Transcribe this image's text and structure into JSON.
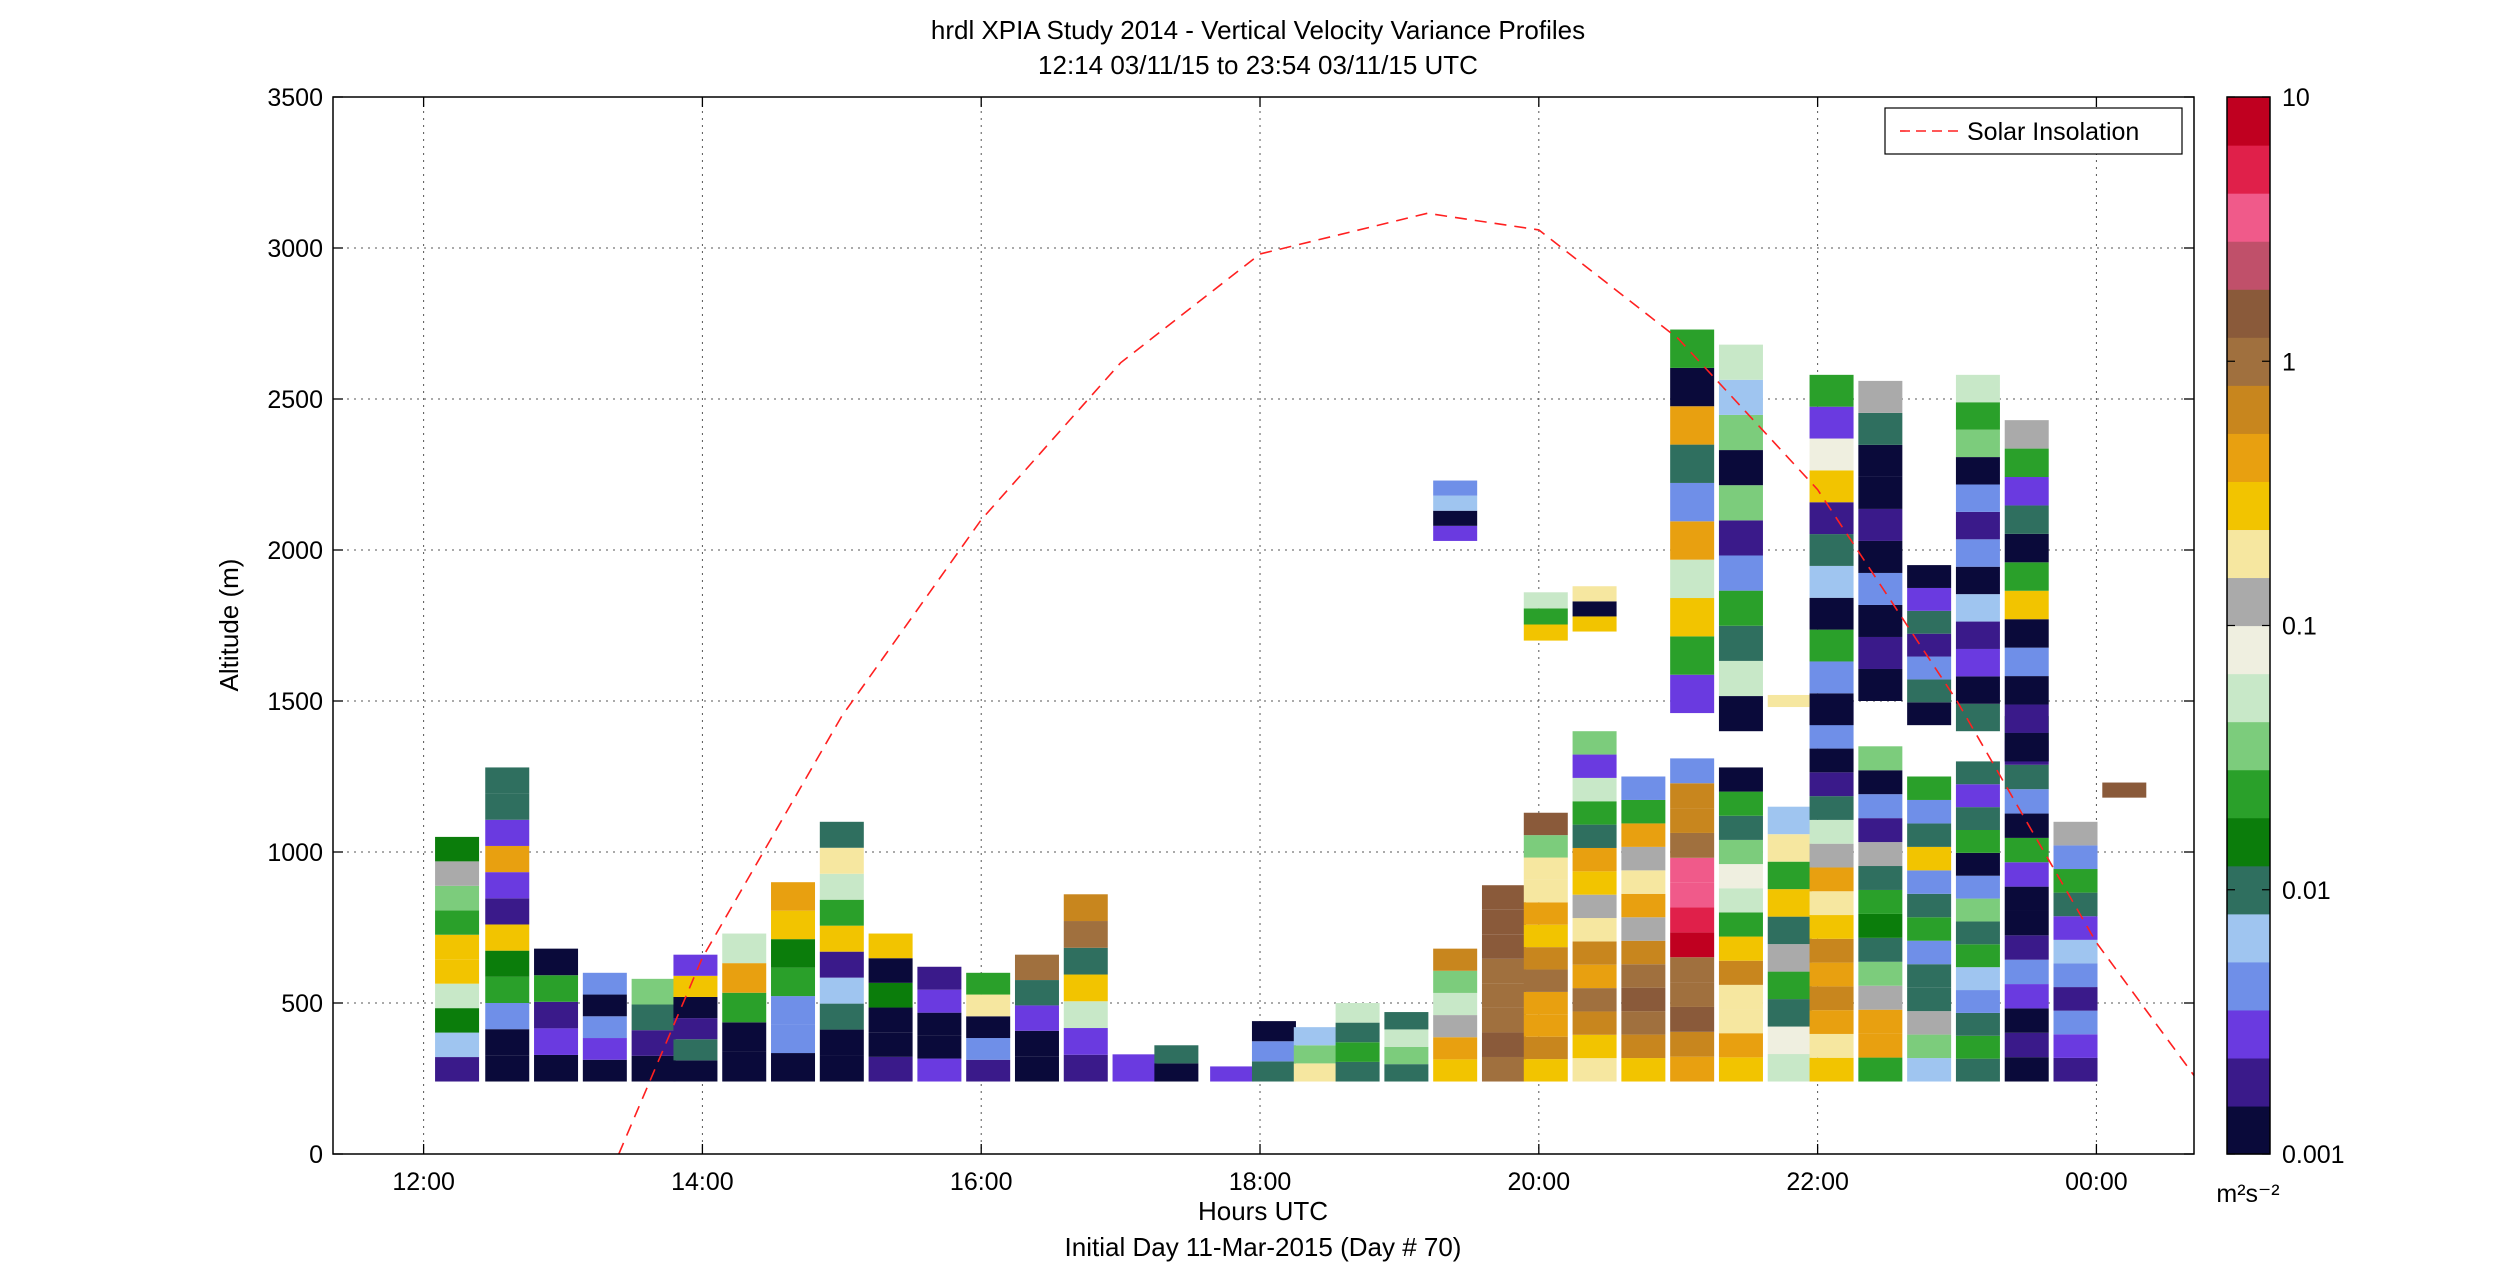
{
  "chart_data": {
    "type": "heatmap",
    "title": "hrdl XPIA Study 2014 - Vertical Velocity Variance Profiles",
    "subtitle": "12:14 03/11/15 to 23:54 03/11/15  UTC",
    "xlabel": "Hours UTC",
    "xlabel2": "Initial Day 11-Mar-2015 (Day # 70)",
    "ylabel": "Altitude (m)",
    "x_ticks": [
      "12:00",
      "14:00",
      "16:00",
      "18:00",
      "20:00",
      "22:00",
      "00:00"
    ],
    "x_tick_hours": [
      12,
      14,
      16,
      18,
      20,
      22,
      24
    ],
    "xlim_hours": [
      11.35,
      24.7
    ],
    "y_ticks": [
      0,
      500,
      1000,
      1500,
      2000,
      2500,
      3000,
      3500
    ],
    "ylim": [
      0,
      3500
    ],
    "grid": true,
    "legend": {
      "entries": [
        "Solar Insolation"
      ],
      "placement": "top-right"
    },
    "colorbar": {
      "scale": "log",
      "range": [
        0.001,
        10
      ],
      "tick_labels": [
        "10",
        "1",
        "0.1",
        "0.01",
        "0.001"
      ],
      "tick_values": [
        10,
        1,
        0.1,
        0.01,
        0.001
      ],
      "unit_label": "m²s⁻²",
      "colors": [
        "#0a0a3a",
        "#3a1a8a",
        "#6a3ae0",
        "#6f8fe8",
        "#9fc5f0",
        "#2f6f5f",
        "#0b7d0b",
        "#2aa02a",
        "#7ccc7c",
        "#c8e8c8",
        "#efefe0",
        "#aaaaaa",
        "#f6e7a0",
        "#f2c400",
        "#e8a010",
        "#c8861e",
        "#a0703e",
        "#8a5a3a",
        "#c0506a",
        "#f05a8a",
        "#e0204a",
        "#c00020"
      ]
    },
    "series": [
      {
        "name": "Solar Insolation",
        "peak_hour": 19.2,
        "peak_altitude": 3115,
        "curve_hours": [
          13.4,
          14,
          15,
          16,
          17,
          18,
          19.2,
          20,
          21,
          22,
          23,
          24,
          24.7
        ],
        "curve_altitudes": [
          0,
          650,
          1450,
          2100,
          2620,
          2980,
          3115,
          3060,
          2700,
          2200,
          1500,
          700,
          260
        ]
      }
    ],
    "profile_blocks": [
      {
        "h": 12.24,
        "z0": 240,
        "z1": 1050,
        "level": [
          0.002,
          0.008,
          0.015,
          0.05,
          0.3,
          0.3,
          0.02,
          0.03,
          0.1,
          0.015
        ]
      },
      {
        "h": 12.6,
        "z0": 240,
        "z1": 1280,
        "level": [
          0.001,
          0.001,
          0.004,
          0.02,
          0.015,
          0.3,
          0.002,
          0.003,
          0.5,
          0.003,
          0.01,
          0.012
        ]
      },
      {
        "h": 12.95,
        "z0": 240,
        "z1": 680,
        "level": [
          0.001,
          0.003,
          0.002,
          0.02,
          0.0012
        ]
      },
      {
        "h": 13.3,
        "z0": 240,
        "z1": 600,
        "level": [
          0.001,
          0.003,
          0.004,
          0.001,
          0.005
        ]
      },
      {
        "h": 13.65,
        "z0": 240,
        "z1": 580,
        "level": [
          0.001,
          0.002,
          0.012,
          0.03
        ]
      },
      {
        "h": 13.95,
        "z0": 240,
        "z1": 660,
        "level": [
          0.001,
          0.01,
          0.002,
          0.0015,
          0.3,
          0.003
        ]
      },
      {
        "h": 14.3,
        "z0": 240,
        "z1": 730,
        "level": [
          0.0015,
          0.001,
          0.02,
          0.4,
          0.05
        ]
      },
      {
        "h": 14.65,
        "z0": 240,
        "z1": 900,
        "level": [
          0.001,
          0.005,
          0.004,
          0.02,
          0.015,
          0.3,
          0.5
        ]
      },
      {
        "h": 15.0,
        "z0": 240,
        "z1": 1100,
        "level": [
          0.001,
          0.0015,
          0.01,
          0.006,
          0.002,
          0.3,
          0.02,
          0.05,
          0.2,
          0.01
        ]
      },
      {
        "h": 15.35,
        "z0": 240,
        "z1": 730,
        "level": [
          0.002,
          0.001,
          0.001,
          0.015,
          0.0015,
          0.3
        ]
      },
      {
        "h": 15.7,
        "z0": 240,
        "z1": 620,
        "level": [
          0.003,
          0.0015,
          0.001,
          0.003,
          0.002
        ]
      },
      {
        "h": 16.05,
        "z0": 240,
        "z1": 600,
        "level": [
          0.002,
          0.005,
          0.001,
          0.2,
          0.02
        ]
      },
      {
        "h": 16.4,
        "z0": 240,
        "z1": 660,
        "level": [
          0.0015,
          0.001,
          0.003,
          0.01,
          1.2
        ]
      },
      {
        "h": 16.75,
        "z0": 240,
        "z1": 860,
        "level": [
          0.002,
          0.003,
          0.05,
          0.3,
          0.01,
          1.2,
          0.7
        ]
      },
      {
        "h": 17.1,
        "z0": 240,
        "z1": 330,
        "level": [
          0.003
        ]
      },
      {
        "h": 17.4,
        "z0": 240,
        "z1": 360,
        "level": [
          0.001,
          0.01
        ]
      },
      {
        "h": 17.8,
        "z0": 240,
        "z1": 290,
        "level": [
          0.0025
        ]
      },
      {
        "h": 18.1,
        "z0": 240,
        "z1": 440,
        "level": [
          0.01,
          0.005,
          0.001
        ]
      },
      {
        "h": 18.4,
        "z0": 240,
        "z1": 420,
        "level": [
          0.2,
          0.03,
          0.008
        ]
      },
      {
        "h": 18.7,
        "z0": 240,
        "z1": 500,
        "level": [
          0.01,
          0.02,
          0.012,
          0.06
        ]
      },
      {
        "h": 19.05,
        "z0": 240,
        "z1": 470,
        "level": [
          0.012,
          0.03,
          0.06,
          0.01
        ]
      },
      {
        "h": 19.4,
        "z0": 240,
        "z1": 680,
        "level": [
          0.3,
          0.5,
          0.1,
          0.05,
          0.04,
          0.8
        ]
      },
      {
        "h": 19.75,
        "z0": 240,
        "z1": 890,
        "level": [
          0.9,
          1.5,
          0.9,
          1.1,
          1.0,
          1.4,
          1.8,
          1.3
        ]
      },
      {
        "h": 20.05,
        "z0": 240,
        "z1": 1130,
        "level": [
          0.3,
          0.8,
          0.5,
          0.4,
          1.0,
          0.6,
          0.3,
          0.5,
          0.2,
          0.2,
          0.04,
          1.5
        ]
      },
      {
        "h": 20.4,
        "z0": 240,
        "z1": 1400,
        "level": [
          0.2,
          0.3,
          0.8,
          1.0,
          0.4,
          0.6,
          0.2,
          0.15,
          0.3,
          0.5,
          0.01,
          0.02,
          0.05,
          0.003,
          0.04
        ]
      },
      {
        "h": 20.75,
        "z0": 240,
        "z1": 1250,
        "level": [
          0.3,
          0.6,
          1.0,
          1.5,
          1.2,
          0.8,
          0.1,
          0.4,
          0.2,
          0.15,
          0.5,
          0.02,
          0.005
        ]
      },
      {
        "h": 21.1,
        "z0": 240,
        "z1": 1310,
        "level": [
          0.5,
          0.8,
          1.6,
          0.9,
          1.2,
          8,
          5,
          4,
          3,
          1.0,
          0.7,
          0.7,
          0.004
        ]
      },
      {
        "h": 21.45,
        "z0": 240,
        "z1": 1280,
        "level": [
          0.3,
          0.5,
          0.2,
          0.2,
          0.6,
          0.3,
          0.02,
          0.05,
          0.08,
          0.03,
          0.01,
          0.02,
          0.001
        ]
      },
      {
        "h": 21.8,
        "z0": 240,
        "z1": 1150,
        "level": [
          0.05,
          0.08,
          0.01,
          0.02,
          0.1,
          0.01,
          0.3,
          0.02,
          0.2,
          0.006
        ]
      },
      {
        "h": 22.1,
        "z0": 240,
        "z1": 1500,
        "level": [
          0.3,
          0.2,
          0.5,
          0.8,
          0.4,
          0.7,
          0.3,
          0.2,
          0.5,
          0.1,
          0.05,
          0.01,
          0.002,
          0.001,
          0.005,
          0.003
        ]
      },
      {
        "h": 22.45,
        "z0": 240,
        "z1": 1350,
        "level": [
          0.02,
          0.5,
          0.4,
          0.1,
          0.03,
          0.01,
          0.015,
          0.02,
          0.01,
          0.1,
          0.002,
          0.005,
          0.001,
          0.03
        ]
      },
      {
        "h": 22.8,
        "z0": 240,
        "z1": 1250,
        "level": [
          0.008,
          0.04,
          0.1,
          0.01,
          0.012,
          0.005,
          0.02,
          0.01,
          0.005,
          0.3,
          0.01,
          0.004,
          0.02
        ]
      },
      {
        "h": 23.15,
        "z0": 240,
        "z1": 1300,
        "level": [
          0.01,
          0.02,
          0.01,
          0.005,
          0.008,
          0.02,
          0.01,
          0.03,
          0.004,
          0.001,
          0.02,
          0.01,
          0.003,
          0.01
        ]
      },
      {
        "h": 23.5,
        "z0": 240,
        "z1": 1450,
        "level": [
          0.001,
          0.002,
          0.001,
          0.003,
          0.005,
          0.002,
          0.001,
          0.001,
          0.003,
          0.02,
          0.001,
          0.005,
          0.01,
          0.002,
          0.02
        ]
      },
      {
        "h": 23.85,
        "z0": 240,
        "z1": 1100,
        "level": [
          0.002,
          0.003,
          0.004,
          0.002,
          0.005,
          0.008,
          0.003,
          0.01,
          0.02,
          0.004,
          0.15
        ]
      },
      {
        "h": 24.2,
        "z0": 1180,
        "z1": 1230,
        "level": [
          1.5
        ]
      }
    ],
    "upper_blocks": [
      {
        "h": 19.4,
        "z0": 2030,
        "z1": 2230,
        "level": [
          0.003,
          0.001,
          0.008,
          0.004
        ]
      },
      {
        "h": 20.05,
        "z0": 1700,
        "z1": 1860,
        "level": [
          0.3,
          0.02,
          0.05
        ]
      },
      {
        "h": 20.4,
        "z0": 1730,
        "z1": 1880,
        "level": [
          0.3,
          0.001,
          0.2
        ]
      },
      {
        "h": 21.1,
        "z0": 1460,
        "z1": 2730,
        "level": [
          0.003,
          0.02,
          0.3,
          0.05,
          0.5,
          0.004,
          0.01,
          0.4,
          0.001,
          0.02
        ]
      },
      {
        "h": 21.45,
        "z0": 1400,
        "z1": 2680,
        "level": [
          0.001,
          0.05,
          0.01,
          0.02,
          0.005,
          0.002,
          0.03,
          0.001,
          0.04,
          0.008,
          0.05
        ]
      },
      {
        "h": 21.8,
        "z0": 1480,
        "z1": 1520,
        "level": [
          0.2
        ]
      },
      {
        "h": 22.1,
        "z0": 1420,
        "z1": 2580,
        "level": [
          0.001,
          0.004,
          0.02,
          0.001,
          0.006,
          0.01,
          0.002,
          0.3,
          0.08,
          0.003,
          0.02
        ]
      },
      {
        "h": 22.45,
        "z0": 1500,
        "z1": 2560,
        "level": [
          0.001,
          0.002,
          0.001,
          0.005,
          0.001,
          0.002,
          0.001,
          0.0012,
          0.01,
          0.15
        ]
      },
      {
        "h": 22.8,
        "z0": 1420,
        "z1": 1950,
        "level": [
          0.001,
          0.01,
          0.005,
          0.002,
          0.01,
          0.003,
          0.001
        ]
      },
      {
        "h": 23.15,
        "z0": 1400,
        "z1": 2580,
        "level": [
          0.01,
          0.001,
          0.003,
          0.002,
          0.008,
          0.001,
          0.004,
          0.002,
          0.005,
          0.001,
          0.04,
          0.02,
          0.05
        ]
      },
      {
        "h": 23.5,
        "z0": 1300,
        "z1": 2430,
        "level": [
          0.001,
          0.002,
          0.001,
          0.005,
          0.001,
          0.3,
          0.02,
          0.001,
          0.01,
          0.003,
          0.02,
          0.1
        ]
      }
    ]
  }
}
